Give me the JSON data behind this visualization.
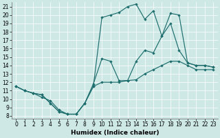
{
  "xlabel": "Humidex (Indice chaleur)",
  "xlim_min": -0.5,
  "xlim_max": 23.5,
  "ylim_min": 7.7,
  "ylim_max": 21.5,
  "xticks": [
    0,
    1,
    2,
    3,
    4,
    5,
    6,
    7,
    8,
    9,
    10,
    11,
    12,
    13,
    14,
    15,
    16,
    17,
    18,
    19,
    20,
    21,
    22,
    23
  ],
  "yticks": [
    8,
    9,
    10,
    11,
    12,
    13,
    14,
    15,
    16,
    17,
    18,
    19,
    20,
    21
  ],
  "bg_color": "#cde8e5",
  "line_color": "#1e6e6e",
  "line1_x": [
    0,
    1,
    2,
    3,
    4,
    5,
    6,
    7,
    8,
    9,
    10,
    11,
    12,
    13,
    14,
    15,
    16,
    17,
    18,
    19,
    20,
    21,
    22,
    23
  ],
  "line1_y": [
    11.5,
    11.0,
    10.7,
    10.5,
    9.5,
    8.5,
    8.2,
    8.2,
    9.5,
    11.5,
    12.0,
    12.0,
    12.0,
    12.2,
    12.3,
    13.0,
    13.5,
    14.0,
    14.5,
    14.5,
    14.0,
    13.5,
    13.5,
    13.5
  ],
  "line2_x": [
    0,
    1,
    2,
    3,
    4,
    5,
    6,
    7,
    8,
    9,
    10,
    11,
    12,
    13,
    14,
    15,
    16,
    17,
    18,
    19,
    20,
    21,
    22,
    23
  ],
  "line2_y": [
    11.5,
    11.0,
    10.7,
    10.2,
    9.8,
    8.7,
    8.2,
    8.2,
    9.5,
    11.8,
    14.8,
    14.5,
    12.2,
    12.2,
    14.5,
    15.8,
    15.5,
    17.5,
    19.0,
    15.8,
    14.3,
    14.0,
    14.0,
    13.8
  ],
  "line3_x": [
    0,
    1,
    2,
    3,
    4,
    5,
    6,
    7,
    8,
    9,
    10,
    11,
    12,
    13,
    14,
    15,
    16,
    17,
    18,
    19,
    20,
    21,
    22,
    23
  ],
  "line3_y": [
    11.5,
    11.0,
    10.7,
    10.5,
    9.5,
    8.5,
    8.2,
    8.2,
    9.5,
    11.5,
    19.7,
    20.0,
    20.3,
    21.0,
    21.3,
    19.5,
    20.5,
    17.5,
    20.2,
    20.0,
    14.3,
    14.0,
    14.0,
    13.8
  ],
  "tick_fontsize": 5.5,
  "xlabel_fontsize": 6.5,
  "linewidth": 0.85,
  "markersize": 2.2
}
